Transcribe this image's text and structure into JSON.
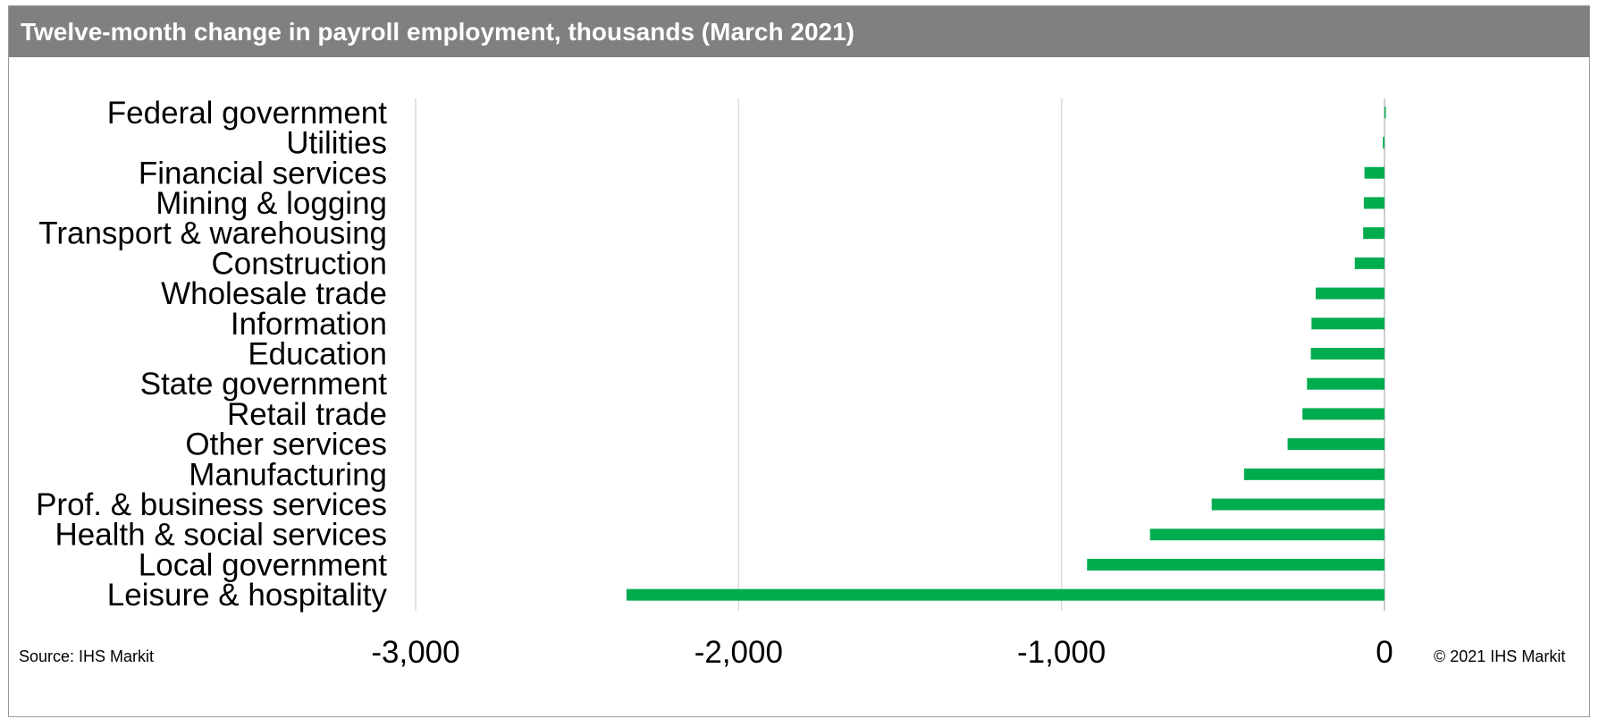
{
  "title": "Twelve-month change in payroll employment, thousands (March 2021)",
  "source": "Source: IHS Markit",
  "copyright": "© 2021 IHS Markit",
  "colors": {
    "bar": "#00ac4e",
    "header_bg": "#808080",
    "grid": "#d9d9d9"
  },
  "chart_data": {
    "type": "bar",
    "orientation": "horizontal",
    "categories": [
      "Federal government",
      "Utilities",
      "Financial services",
      "Mining & logging",
      "Transport & warehousing",
      "Construction",
      "Wholesale trade",
      "Information",
      "Education",
      "State government",
      "Retail trade",
      "Other services",
      "Manufacturing",
      "Prof. & business services",
      "Health & social services",
      "Local government",
      "Leisure & hospitality"
    ],
    "values": [
      3,
      -5,
      -62,
      -64,
      -66,
      -92,
      -213,
      -226,
      -228,
      -240,
      -254,
      -300,
      -435,
      -535,
      -726,
      -921,
      -2347
    ],
    "xlim": [
      -3000,
      0
    ],
    "xticks": [
      -3000,
      -2000,
      -1000,
      0
    ],
    "xtick_labels": [
      "-3,000",
      "-2,000",
      "-1,000",
      "0"
    ],
    "grid": true,
    "legend": "none"
  }
}
